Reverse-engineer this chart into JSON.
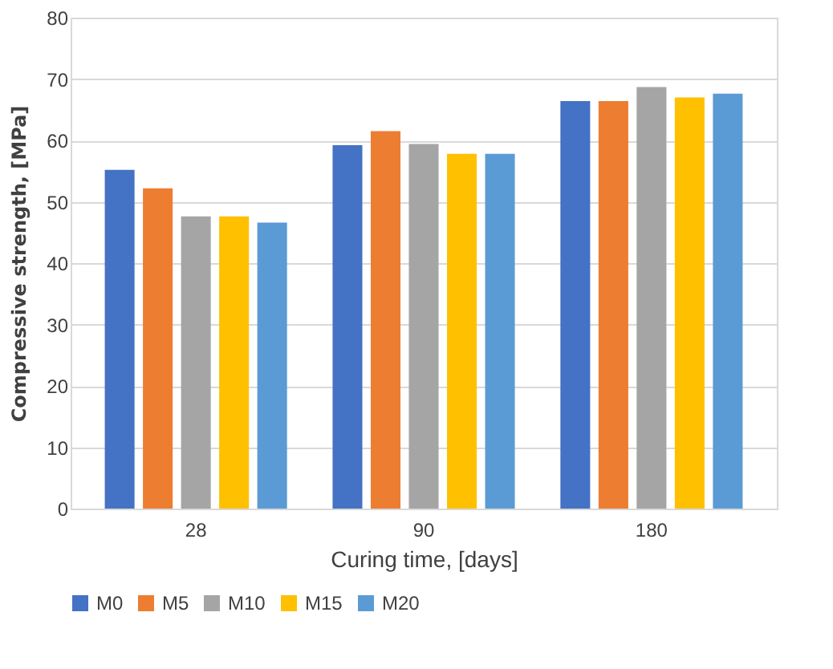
{
  "chart_data": {
    "type": "bar",
    "xlabel": "Curing time, [days]",
    "ylabel": "Compressive strength, [MPa]",
    "categories": [
      "28",
      "90",
      "180"
    ],
    "series": [
      {
        "name": "M0",
        "color": "#4472c4",
        "values": [
          55.2,
          59.2,
          66.4
        ]
      },
      {
        "name": "M5",
        "color": "#ed7d31",
        "values": [
          52.2,
          61.5,
          66.4
        ]
      },
      {
        "name": "M10",
        "color": "#a5a5a5",
        "values": [
          47.6,
          59.4,
          68.7
        ]
      },
      {
        "name": "M15",
        "color": "#ffc000",
        "values": [
          47.6,
          57.8,
          67.0
        ]
      },
      {
        "name": "M20",
        "color": "#5b9bd5",
        "values": [
          46.6,
          57.8,
          67.6
        ]
      }
    ],
    "ylim": [
      0,
      80
    ],
    "yticks": [
      0,
      10,
      20,
      30,
      40,
      50,
      60,
      70,
      80
    ],
    "grid": "y",
    "legend": "bottom"
  }
}
